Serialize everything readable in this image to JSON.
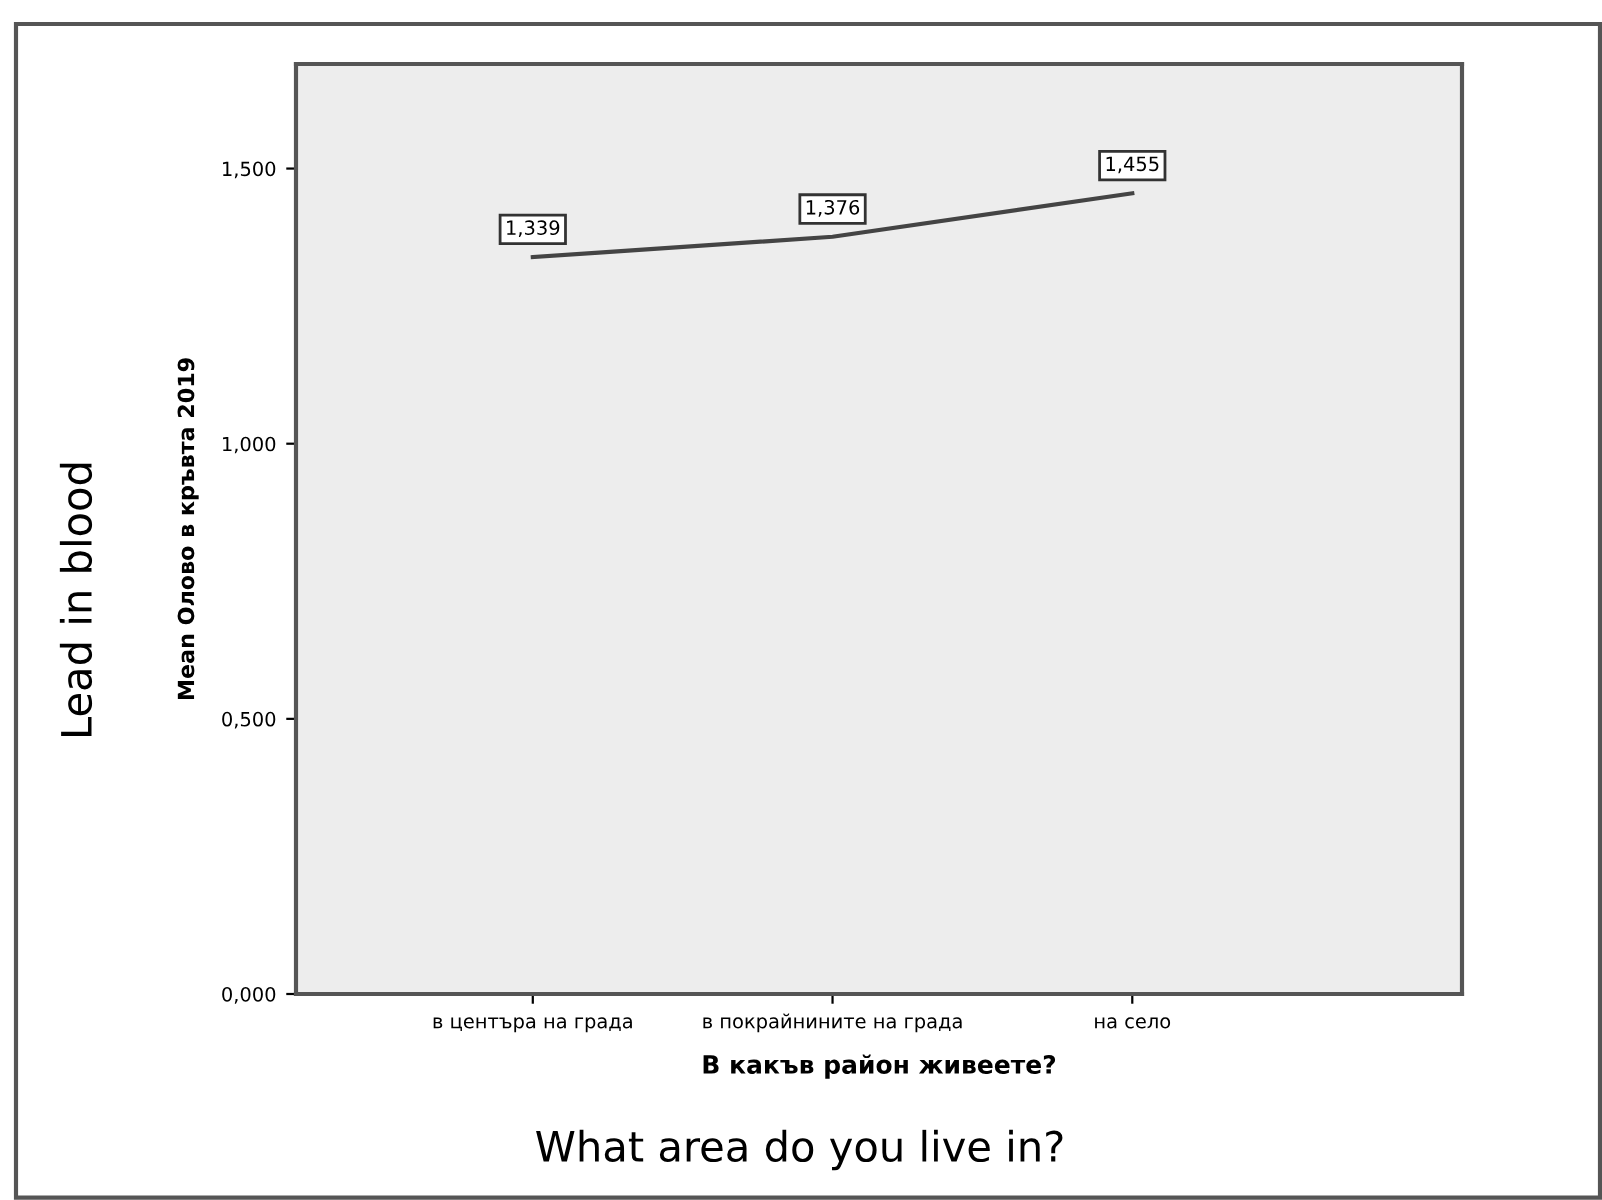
{
  "chart_data": {
    "type": "line",
    "xlabel": "В какъв район живеете?",
    "ylabel": "Mean Олово в кръвта 2019",
    "categories": [
      "в центъра на града",
      "в покрайнините на града",
      "на село"
    ],
    "series": [
      {
        "color": "#444444",
        "values": [
          1.339,
          1.376,
          1.455
        ],
        "value_labels": [
          "1,339",
          "1,376",
          "1,455"
        ]
      }
    ],
    "ylim": [
      0,
      1.69
    ],
    "yticks": [
      {
        "value": 0,
        "label": "0,000"
      },
      {
        "value": 0.5,
        "label": "0,500"
      },
      {
        "value": 1.0,
        "label": "1,000"
      },
      {
        "value": 1.5,
        "label": "1,500"
      }
    ],
    "marker": "none",
    "line_style": "solid",
    "grid": false,
    "annotations": [
      "Lead in blood",
      "What area do you live in?"
    ]
  }
}
